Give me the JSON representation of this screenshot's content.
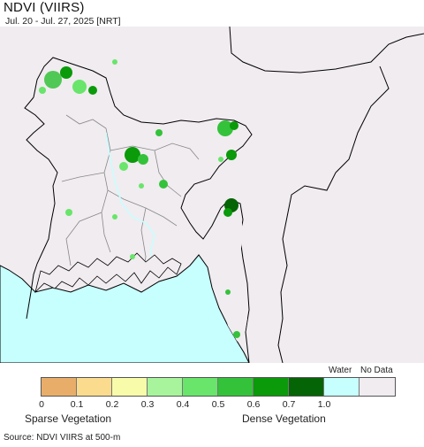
{
  "header": {
    "title": "NDVI (VIIRS)",
    "subtitle": "Jul. 20 - Jul. 27, 2025 [NRT]"
  },
  "map": {
    "land_color": "#f0ecf0",
    "water_color": "#c7ffff",
    "border_color": "#000000"
  },
  "legend": {
    "water_label": "Water",
    "nodata_label": "No Data",
    "swatches": [
      {
        "name": "0-0.1",
        "color": "#e8ae69"
      },
      {
        "name": "0.1-0.2",
        "color": "#fbdc8e"
      },
      {
        "name": "0.2-0.3",
        "color": "#f8fba9"
      },
      {
        "name": "0.3-0.4",
        "color": "#a8f49c"
      },
      {
        "name": "0.4-0.5",
        "color": "#68e56a"
      },
      {
        "name": "0.5-0.6",
        "color": "#34c23a"
      },
      {
        "name": "0.6-0.7",
        "color": "#0a9a0a"
      },
      {
        "name": "0.7-1.0",
        "color": "#056405"
      },
      {
        "name": "water",
        "color": "#c7ffff"
      },
      {
        "name": "nodata",
        "color": "#f0ecf0"
      }
    ],
    "ticks": [
      "0",
      "0.1",
      "0.2",
      "0.3",
      "0.4",
      "0.5",
      "0.6",
      "0.7",
      "1.0"
    ],
    "sparse_label": "Sparse Vegetation",
    "dense_label": "Dense Vegetation"
  },
  "footer": {
    "source": "Source: NDVI VIIRS at 500-m"
  }
}
